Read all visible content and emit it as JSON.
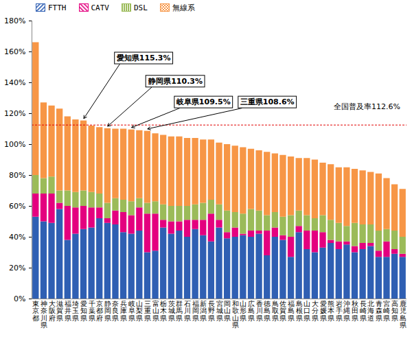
{
  "chart_data": {
    "type": "bar",
    "stacked": true,
    "legend": "top-left",
    "grid": false,
    "categories": [
      "東京都",
      "神奈川県",
      "大阪府",
      "滋賀県",
      "福井県",
      "埼玉県",
      "愛知県",
      "千葉県",
      "京都府",
      "静岡県",
      "奈良県",
      "兵庫県",
      "岐阜県",
      "山梨県",
      "三重県",
      "富山県",
      "栃木県",
      "茨城県",
      "群馬県",
      "石川県",
      "福岡県",
      "新潟県",
      "長野県",
      "宮城県",
      "岡山県",
      "和歌山県",
      "山形県",
      "広島県",
      "香川県",
      "徳島県",
      "鳥取県",
      "佐賀県",
      "福島県",
      "島根県",
      "山口県",
      "大分県",
      "愛媛県",
      "熊本県",
      "岩手県",
      "沖縄県",
      "秋田県",
      "長崎県",
      "北海道",
      "青森県",
      "宮崎県",
      "高知県",
      "鹿児島県"
    ],
    "series": [
      {
        "name": "FTTH",
        "color": "#2f5fb3",
        "values": [
          53,
          50,
          49,
          58,
          38,
          42,
          45,
          46,
          52,
          49,
          48,
          43,
          42,
          44,
          30,
          31,
          46,
          42,
          44,
          40,
          45,
          41,
          37,
          46,
          39,
          40,
          41,
          40,
          42,
          28,
          40,
          38,
          27,
          43,
          32,
          30,
          33,
          36,
          32,
          35,
          30,
          32,
          34,
          27,
          27,
          29,
          27
        ]
      },
      {
        "name": "CATV",
        "color": "#e4007f",
        "values": [
          15,
          18,
          19,
          4,
          22,
          17,
          15,
          13,
          7,
          3,
          9,
          13,
          12,
          15,
          25,
          24,
          5,
          8,
          6,
          11,
          6,
          10,
          18,
          5,
          4,
          6,
          1,
          4,
          2,
          16,
          6,
          3,
          13,
          4,
          12,
          14,
          10,
          2,
          5,
          2,
          4,
          4,
          2,
          4,
          10,
          3,
          2
        ]
      },
      {
        "name": "DSL",
        "color": "#9bbb59",
        "values": [
          12,
          10,
          11,
          8,
          10,
          10,
          10,
          10,
          9,
          10,
          8,
          8,
          9,
          6,
          7,
          8,
          10,
          10,
          10,
          9,
          10,
          11,
          9,
          10,
          14,
          10,
          13,
          14,
          13,
          10,
          10,
          12,
          14,
          10,
          10,
          8,
          11,
          13,
          12,
          10,
          15,
          12,
          12,
          13,
          8,
          12,
          11
        ]
      },
      {
        "name": "無線系",
        "color": "#f79646",
        "values": [
          86,
          49,
          46,
          53,
          48,
          47,
          45.3,
          43,
          43,
          48.3,
          45,
          46,
          46.5,
          44,
          46.6,
          44,
          45,
          45,
          45,
          44,
          43,
          41,
          39,
          40,
          43,
          43,
          43,
          39,
          39,
          41,
          38,
          40,
          38,
          34,
          37,
          38,
          34,
          36,
          36,
          38,
          35,
          35,
          34,
          37,
          33,
          30,
          31
        ]
      }
    ],
    "ylim": [
      0,
      180
    ],
    "yticks": [
      {
        "value": 0,
        "label": "0%"
      },
      {
        "value": 20,
        "label": "20%"
      },
      {
        "value": 40,
        "label": "40%"
      },
      {
        "value": 60,
        "label": "60%"
      },
      {
        "value": 80,
        "label": "80%"
      },
      {
        "value": 100,
        "label": "100%"
      },
      {
        "value": 120,
        "label": "120%"
      },
      {
        "value": 140,
        "label": "140%"
      },
      {
        "value": 160,
        "label": "160%"
      },
      {
        "value": 180,
        "label": "180%"
      }
    ],
    "annotations": [
      {
        "text": "愛知県115.3%",
        "category": "愛知県"
      },
      {
        "text": "静岡県110.3%",
        "category": "静岡県"
      },
      {
        "text": "岐阜県109.5%",
        "category": "岐阜県"
      },
      {
        "text": "三重県108.6%",
        "category": "三重県"
      }
    ],
    "reference_line": {
      "value": 112.6,
      "label": "全国普及率112.6%",
      "color": "#e00000"
    }
  }
}
